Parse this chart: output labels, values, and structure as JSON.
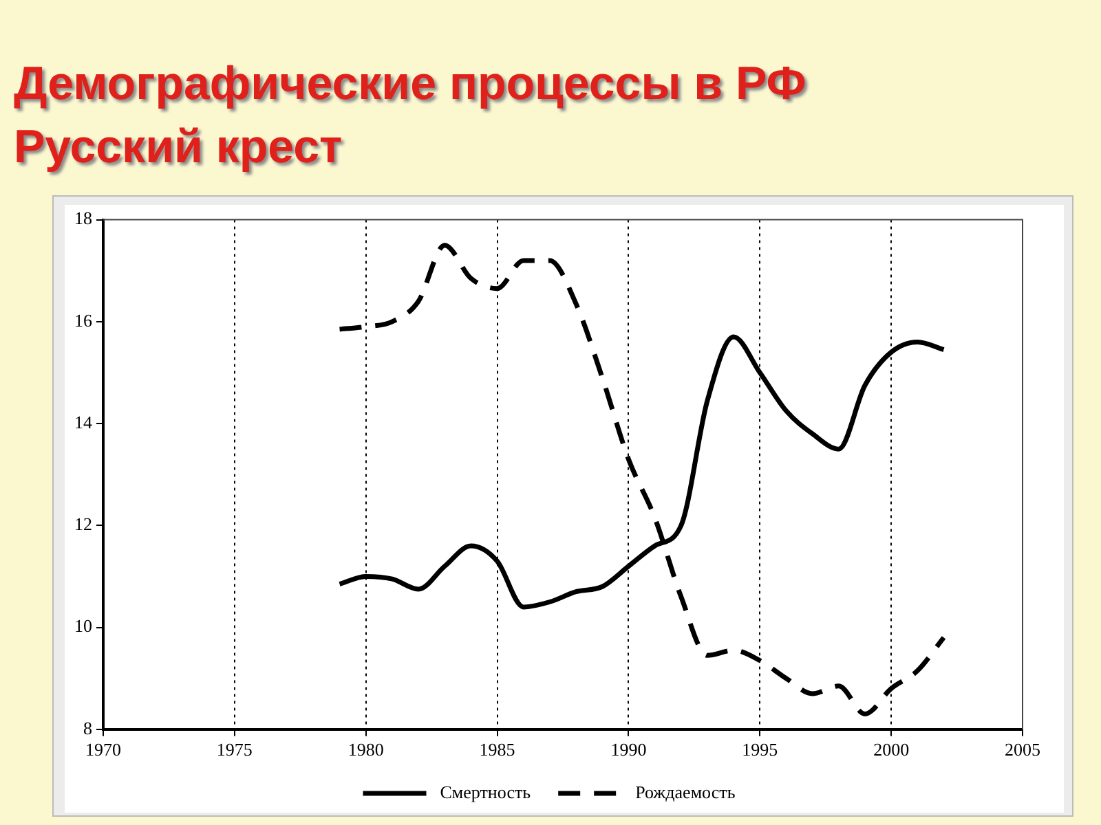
{
  "chart_data": {
    "type": "line",
    "title": "Демографические процессы в РФ",
    "subtitle": "Русский крест",
    "x": [
      1979,
      1980,
      1981,
      1982,
      1983,
      1984,
      1985,
      1986,
      1987,
      1988,
      1989,
      1990,
      1991,
      1992,
      1993,
      1994,
      1995,
      1996,
      1997,
      1998,
      1999,
      2000,
      2001,
      2002
    ],
    "series": [
      {
        "name": "Смертность",
        "color": "#000000",
        "line_style": "solid",
        "values": [
          10.85,
          11.0,
          10.95,
          10.75,
          11.2,
          11.6,
          11.3,
          10.4,
          10.5,
          10.7,
          10.8,
          11.2,
          11.6,
          12.0,
          14.45,
          15.7,
          15.0,
          14.25,
          13.8,
          13.5,
          14.75,
          15.4,
          15.6,
          15.45
        ]
      },
      {
        "name": "Рождаемость",
        "color": "#000000",
        "line_style": "dashed",
        "values": [
          15.85,
          15.9,
          16.0,
          16.4,
          17.5,
          16.85,
          16.65,
          17.2,
          17.2,
          16.35,
          14.9,
          13.3,
          12.15,
          10.6,
          9.45,
          9.55,
          9.35,
          9.0,
          8.7,
          8.85,
          8.3,
          8.8,
          9.15,
          9.8
        ]
      }
    ],
    "xlim": [
      1970,
      2005
    ],
    "xticks": [
      1970,
      1975,
      1980,
      1985,
      1990,
      1995,
      2000,
      2005
    ],
    "ylim": [
      8,
      18
    ],
    "yticks": [
      8,
      10,
      12,
      14,
      16,
      18
    ],
    "grid": "x",
    "legend": "bottom",
    "marker": "none"
  }
}
